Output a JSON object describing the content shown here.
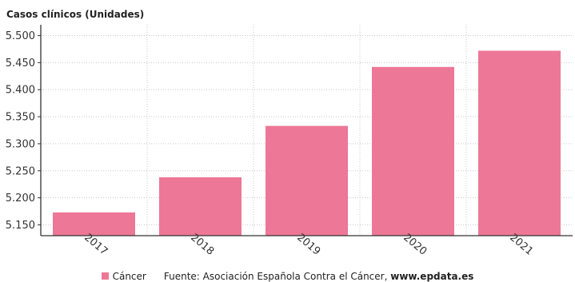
{
  "chart_data": {
    "type": "bar",
    "ylabel": "Casos clínicos (Unidades)",
    "xlabel": "",
    "categories": [
      "2017",
      "2018",
      "2019",
      "2020",
      "2021"
    ],
    "series": [
      {
        "name": "Cáncer",
        "color": "#ed7796",
        "values": [
          5173,
          5238,
          5333,
          5442,
          5472
        ]
      }
    ],
    "ylim": [
      5130,
      5520
    ],
    "yticks": [
      5150,
      5200,
      5250,
      5300,
      5350,
      5400,
      5450,
      5500
    ],
    "ytick_labels": [
      "5.150",
      "5.200",
      "5.250",
      "5.300",
      "5.350",
      "5.400",
      "5.450",
      "5.500"
    ],
    "grid": "dotted",
    "legend_position": "bottom"
  },
  "legend": {
    "series_label": "Cáncer",
    "source_text": "Fuente: Asociación Española Contra el Cáncer,",
    "source_link": "www.epdata.es"
  }
}
